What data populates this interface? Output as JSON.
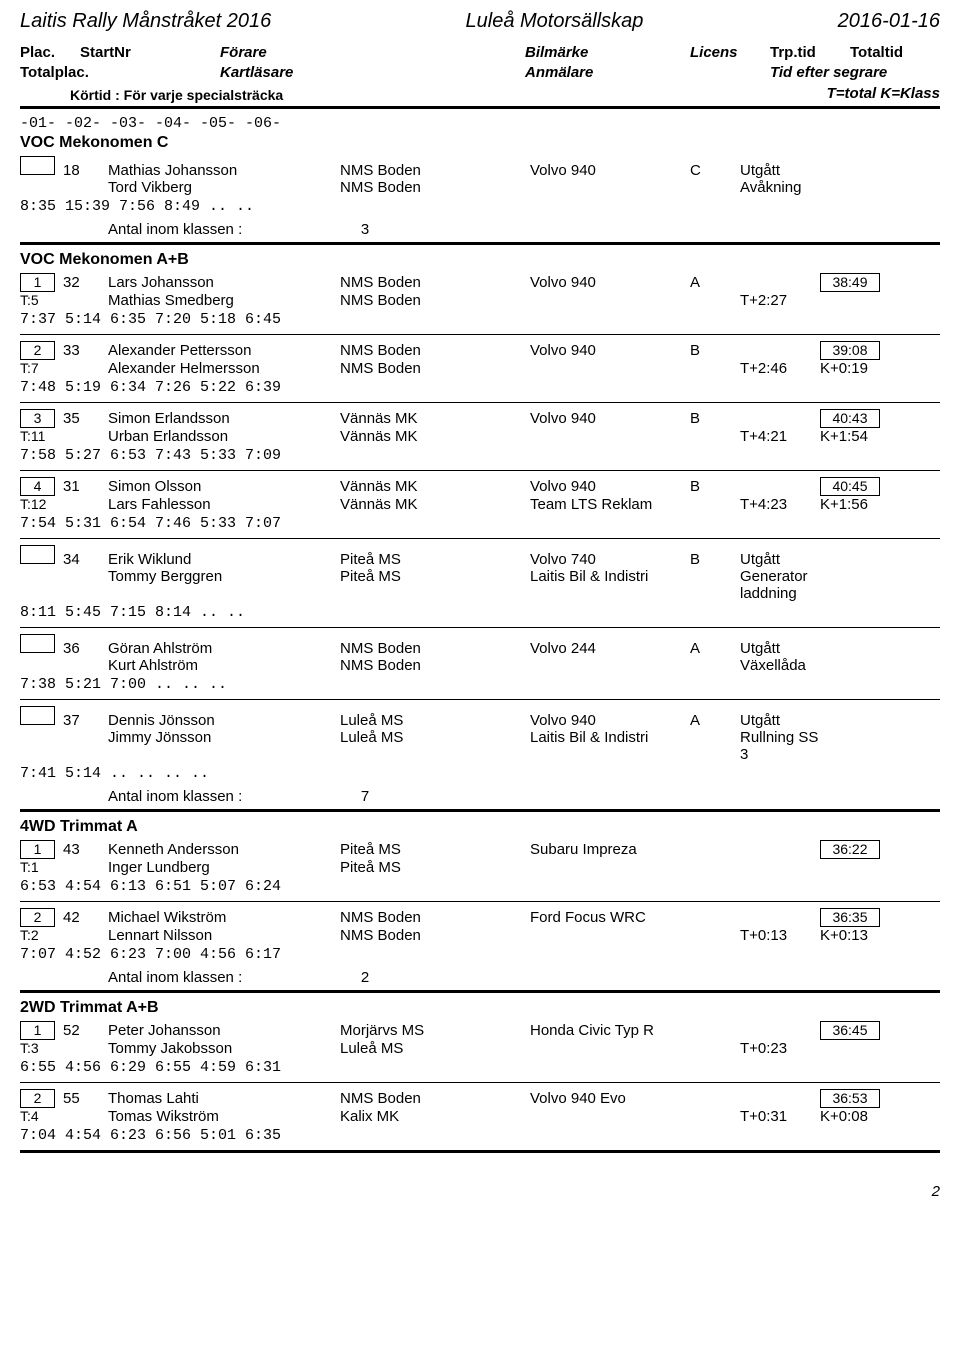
{
  "header": {
    "event": "Laitis Rally Månstråket 2016",
    "club": "Luleå Motorsällskap",
    "date": "2016-01-16"
  },
  "cols": {
    "plac": "Plac.",
    "startnr": "StartNr",
    "forare": "Förare",
    "bilmarke": "Bilmärke",
    "licens": "Licens",
    "trptid": "Trp.tid",
    "totaltid": "Totaltid",
    "totalplac": "Totalplac.",
    "kartlasare": "Kartläsare",
    "anmalare": "Anmälare",
    "tes": "Tid efter segrare",
    "kortid": "Körtid : För varje specialsträcka",
    "tkk": "T=total K=Klass"
  },
  "stage_labels": "-01-  -02-  -03-  -04-   -05-   -06-",
  "labels": {
    "antal": "Antal inom klassen  :"
  },
  "classes": [
    {
      "name": "VOC Mekonomen C",
      "entries": [
        {
          "plac": "",
          "start": "18",
          "driver": "Mathias Johansson",
          "club": "NMS Boden",
          "car": "Volvo 940",
          "lic": "C",
          "extra": "Utgått",
          "totaltid": "",
          "tplac": "",
          "nav": "Tord Vikberg",
          "navclub": "NMS Boden",
          "team": "",
          "tplus": "Avåkning",
          "kplus": "",
          "times": " 8:35 15:39  7:56  8:49    ..     .."
        }
      ],
      "antal": "3"
    },
    {
      "name": "VOC Mekonomen A+B",
      "entries": [
        {
          "plac": "1",
          "start": "32",
          "driver": "Lars Johansson",
          "club": "NMS Boden",
          "car": "Volvo 940",
          "lic": "A",
          "extra": "",
          "totaltid": "38:49",
          "tplac": "T:5",
          "nav": "Mathias Smedberg",
          "navclub": "NMS Boden",
          "team": "",
          "tplus": "T+2:27",
          "kplus": "",
          "times": " 7:37  5:14  6:35  7:20   5:18   6:45"
        },
        {
          "plac": "2",
          "start": "33",
          "driver": "Alexander Pettersson",
          "club": "NMS Boden",
          "car": "Volvo 940",
          "lic": "B",
          "extra": "",
          "totaltid": "39:08",
          "tplac": "T:7",
          "nav": "Alexander Helmersson",
          "navclub": "NMS Boden",
          "team": "",
          "tplus": "T+2:46",
          "kplus": "K+0:19",
          "times": " 7:48  5:19  6:34  7:26   5:22   6:39"
        },
        {
          "plac": "3",
          "start": "35",
          "driver": "Simon Erlandsson",
          "club": "Vännäs MK",
          "car": "Volvo 940",
          "lic": "B",
          "extra": "",
          "totaltid": "40:43",
          "tplac": "T:11",
          "nav": "Urban Erlandsson",
          "navclub": "Vännäs MK",
          "team": "",
          "tplus": "T+4:21",
          "kplus": "K+1:54",
          "times": " 7:58  5:27  6:53  7:43   5:33   7:09"
        },
        {
          "plac": "4",
          "start": "31",
          "driver": "Simon Olsson",
          "club": "Vännäs MK",
          "car": "Volvo 940",
          "lic": "B",
          "extra": "",
          "totaltid": "40:45",
          "tplac": "T:12",
          "nav": "Lars Fahlesson",
          "navclub": "Vännäs MK",
          "team": "Team LTS Reklam",
          "tplus": "T+4:23",
          "kplus": "K+1:56",
          "times": " 7:54  5:31  6:54  7:46   5:33   7:07"
        },
        {
          "plac": "",
          "start": "34",
          "driver": "Erik Wiklund",
          "club": "Piteå MS",
          "car": "Volvo 740",
          "lic": "B",
          "extra": "Utgått",
          "totaltid": "",
          "tplac": "",
          "nav": "Tommy Berggren",
          "navclub": "Piteå MS",
          "team": "Laitis Bil & Indistri",
          "tplus": "Generator laddning",
          "kplus": "",
          "times": " 8:11  5:45  7:15  8:14    ..     .."
        },
        {
          "plac": "",
          "start": "36",
          "driver": "Göran Ahlström",
          "club": "NMS Boden",
          "car": "Volvo 244",
          "lic": "A",
          "extra": "Utgått",
          "totaltid": "",
          "tplac": "",
          "nav": "Kurt Ahlström",
          "navclub": "NMS Boden",
          "team": "",
          "tplus": "Växellåda",
          "kplus": "",
          "times": " 7:38  5:21  7:00   ..     ..     .."
        },
        {
          "plac": "",
          "start": "37",
          "driver": "Dennis Jönsson",
          "club": "Luleå MS",
          "car": "Volvo 940",
          "lic": "A",
          "extra": "Utgått",
          "totaltid": "",
          "tplac": "",
          "nav": "Jimmy Jönsson",
          "navclub": "Luleå MS",
          "team": "Laitis Bil & Indistri",
          "tplus": "Rullning SS 3",
          "kplus": "",
          "times": " 7:41  5:14   ..    ..     ..     .."
        }
      ],
      "antal": "7"
    },
    {
      "name": "4WD Trimmat A",
      "entries": [
        {
          "plac": "1",
          "start": "43",
          "driver": "Kenneth Andersson",
          "club": "Piteå MS",
          "car": "Subaru Impreza",
          "lic": "",
          "extra": "",
          "totaltid": "36:22",
          "tplac": "T:1",
          "nav": "Inger Lundberg",
          "navclub": "Piteå MS",
          "team": "",
          "tplus": "",
          "kplus": "",
          "times": " 6:53  4:54  6:13  6:51   5:07   6:24"
        },
        {
          "plac": "2",
          "start": "42",
          "driver": "Michael Wikström",
          "club": "NMS Boden",
          "car": "Ford Focus WRC",
          "lic": "",
          "extra": "",
          "totaltid": "36:35",
          "tplac": "T:2",
          "nav": "Lennart Nilsson",
          "navclub": "NMS Boden",
          "team": "",
          "tplus": "T+0:13",
          "kplus": "K+0:13",
          "times": " 7:07  4:52  6:23  7:00   4:56   6:17"
        }
      ],
      "antal": "2"
    },
    {
      "name": "2WD Trimmat A+B",
      "entries": [
        {
          "plac": "1",
          "start": "52",
          "driver": "Peter Johansson",
          "club": "Morjärvs MS",
          "car": "Honda Civic Typ R",
          "lic": "",
          "extra": "",
          "totaltid": "36:45",
          "tplac": "T:3",
          "nav": "Tommy Jakobsson",
          "navclub": "Luleå MS",
          "team": "",
          "tplus": "T+0:23",
          "kplus": "",
          "times": " 6:55  4:56  6:29  6:55   4:59   6:31"
        },
        {
          "plac": "2",
          "start": "55",
          "driver": "Thomas Lahti",
          "club": "NMS Boden",
          "car": "Volvo 940 Evo",
          "lic": "",
          "extra": "",
          "totaltid": "36:53",
          "tplac": "T:4",
          "nav": "Tomas Wikström",
          "navclub": "Kalix MK",
          "team": "",
          "tplus": "T+0:31",
          "kplus": "K+0:08",
          "times": " 7:04  4:54  6:23  6:56   5:01   6:35"
        }
      ],
      "antal": ""
    }
  ],
  "page_num": "2"
}
